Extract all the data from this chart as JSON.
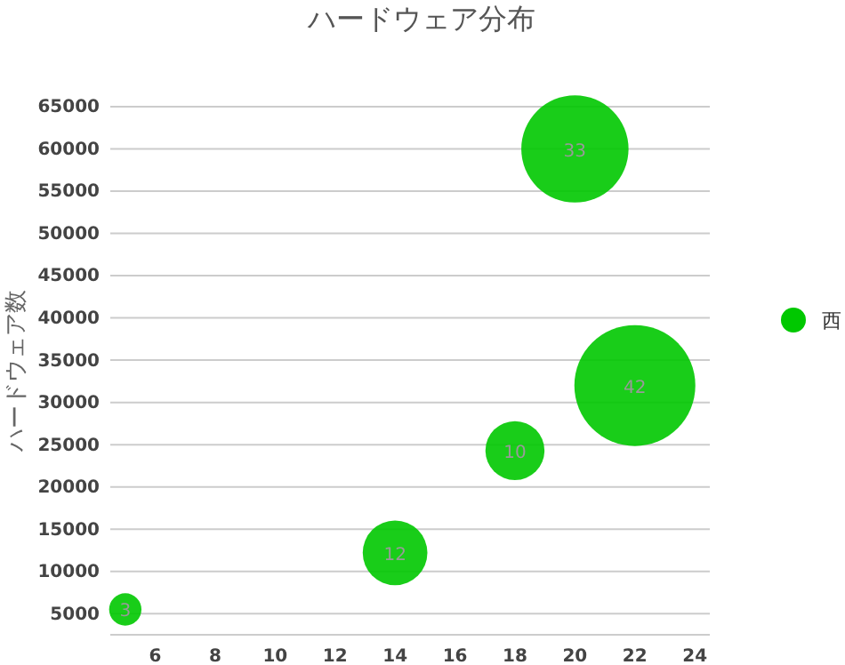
{
  "chart_data": {
    "type": "bubble",
    "title": "ハードウェア分布",
    "ylabel": "ハードウェア数",
    "xlim": [
      4.5,
      24.5
    ],
    "xticks": [
      6,
      8,
      10,
      12,
      14,
      16,
      18,
      20,
      22,
      24
    ],
    "ylim": [
      2500,
      65000
    ],
    "yticks": [
      5000,
      10000,
      15000,
      20000,
      25000,
      30000,
      35000,
      40000,
      45000,
      50000,
      55000,
      60000,
      65000
    ],
    "grid": "y",
    "legend": "right",
    "series": [
      {
        "name": "西",
        "color": "#00c800",
        "x": [
          5,
          14,
          18,
          20,
          22
        ],
        "values": [
          5500,
          12200,
          24300,
          60000,
          32000
        ],
        "sizes": [
          3,
          12,
          10,
          33,
          42
        ],
        "value_labels": [
          "3",
          "12",
          "10",
          "33",
          "42"
        ]
      }
    ]
  }
}
